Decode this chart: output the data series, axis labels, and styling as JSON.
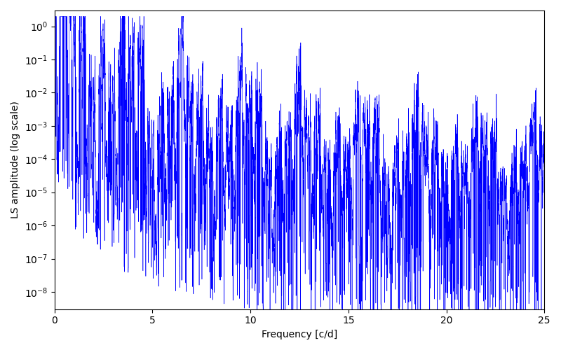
{
  "title": "",
  "xlabel": "Frequency [c/d]",
  "ylabel": "LS amplitude (log scale)",
  "xlim": [
    0,
    25
  ],
  "ylim": [
    3e-09,
    3.0
  ],
  "line_color": "blue",
  "fig_width": 8.0,
  "fig_height": 5.0,
  "dpi": 100,
  "seed": 42,
  "n_points": 8000,
  "freq_max": 25.0
}
